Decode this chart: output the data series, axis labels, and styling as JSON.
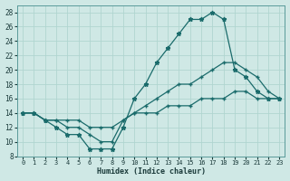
{
  "xlabel": "Humidex (Indice chaleur)",
  "background_color": "#cfe8e5",
  "grid_color": "#b0d5d0",
  "line_color": "#1a6b6b",
  "xlim": [
    -0.5,
    23.5
  ],
  "ylim": [
    8,
    29
  ],
  "x_ticks": [
    0,
    1,
    2,
    3,
    4,
    5,
    6,
    7,
    8,
    9,
    10,
    11,
    12,
    13,
    14,
    15,
    16,
    17,
    18,
    19,
    20,
    21,
    22,
    23
  ],
  "y_ticks": [
    8,
    10,
    12,
    14,
    16,
    18,
    20,
    22,
    24,
    26,
    28
  ],
  "line1_x": [
    0,
    1,
    2,
    3,
    4,
    5,
    6,
    7,
    8,
    9,
    10,
    11,
    12,
    13,
    14,
    15,
    16,
    17,
    18,
    19,
    20,
    21,
    22,
    23
  ],
  "line1_y": [
    14,
    14,
    13,
    12,
    11,
    11,
    9,
    9,
    9,
    12,
    16,
    18,
    21,
    23,
    25,
    27,
    27,
    28,
    27,
    20,
    19,
    17,
    16,
    16
  ],
  "line2_x": [
    0,
    1,
    2,
    3,
    4,
    5,
    6,
    7,
    8,
    9,
    10,
    11,
    12,
    13,
    14,
    15,
    16,
    17,
    18,
    19,
    20,
    21,
    22,
    23
  ],
  "line2_y": [
    14,
    14,
    13,
    13,
    12,
    12,
    11,
    10,
    10,
    13,
    14,
    15,
    16,
    17,
    18,
    18,
    19,
    20,
    21,
    21,
    20,
    19,
    17,
    16
  ],
  "line3_x": [
    0,
    1,
    2,
    3,
    4,
    5,
    6,
    7,
    8,
    9,
    10,
    11,
    12,
    13,
    14,
    15,
    16,
    17,
    18,
    19,
    20,
    21,
    22,
    23
  ],
  "line3_y": [
    14,
    14,
    13,
    13,
    13,
    13,
    12,
    12,
    12,
    13,
    14,
    14,
    14,
    15,
    15,
    15,
    16,
    16,
    16,
    17,
    17,
    16,
    16,
    16
  ]
}
